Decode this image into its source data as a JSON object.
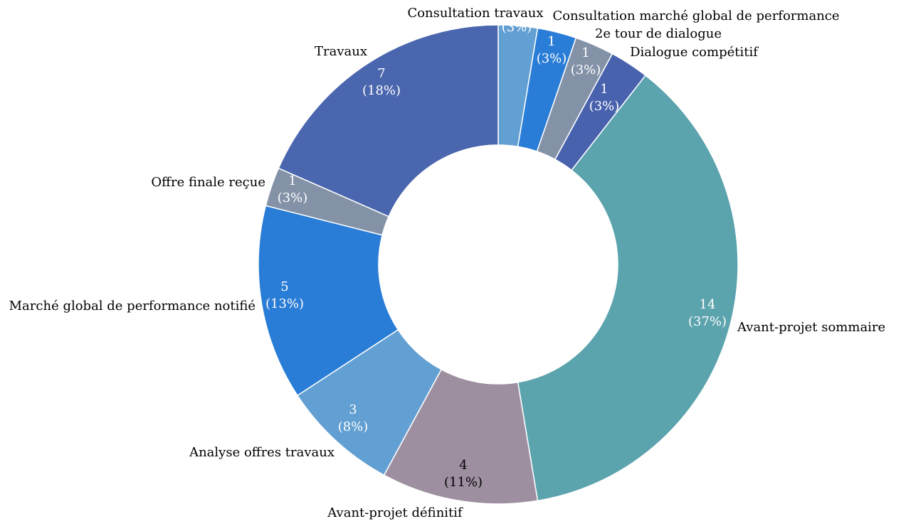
{
  "chart_data": {
    "type": "pie",
    "variant": "donut",
    "title": "",
    "legend": "none",
    "categories": [
      "Consultation travaux",
      "Consultation marché global de performance",
      "2e tour de dialogue",
      "Dialogue compétitif",
      "Avant-projet sommaire",
      "Avant-projet définitif",
      "Analyse offres travaux",
      "Marché global de performance notifié",
      "Offre finale reçue",
      "Travaux"
    ],
    "values": [
      1,
      1,
      1,
      1,
      14,
      4,
      3,
      5,
      1,
      7
    ],
    "percent_labels": [
      "(3%)",
      "(3%)",
      "(3%)",
      "(3%)",
      "(37%)",
      "(11%)",
      "(8%)",
      "(13%)",
      "(3%)",
      "(18%)"
    ],
    "colors": [
      "#629FD2",
      "#2A7DD6",
      "#8492A8",
      "#4862AE",
      "#5BA3AD",
      "#9D8F9F",
      "#629FD2",
      "#2A7DD6",
      "#8492A8",
      "#4A66AE"
    ],
    "value_label_colors": [
      "#ffffff",
      "#ffffff",
      "#ffffff",
      "#ffffff",
      "#ffffff",
      "#000000",
      "#ffffff",
      "#ffffff",
      "#ffffff",
      "#ffffff"
    ]
  }
}
